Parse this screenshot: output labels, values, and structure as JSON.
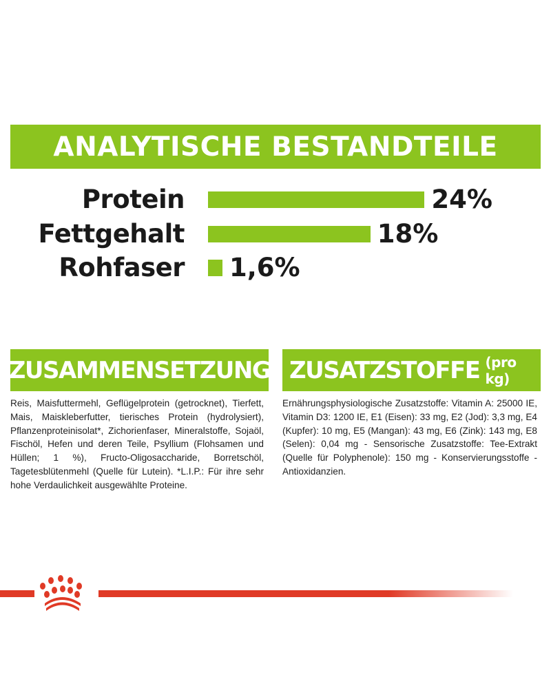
{
  "title": "ANALYTISCHE BESTANDTEILE",
  "analytics": [
    {
      "label": "Protein",
      "value": 24,
      "display": "24%"
    },
    {
      "label": "Fettgehalt",
      "value": 18,
      "display": "18%"
    },
    {
      "label": "Rohfaser",
      "value": 1.6,
      "display": "1,6%"
    }
  ],
  "composition": {
    "heading": "ZUSAMMENSETZUNG",
    "text": "Reis, Maisfuttermehl, Geflügelprotein (getrocknet), Tierfett, Mais, Maiskleberfutter, tierisches Protein (hydrolysiert), Pflanzenproteinisolat*, Zichorienfaser, Mineralstoffe, Sojaöl, Fischöl, Hefen und deren Teile, Psyllium (Flohsamen und Hüllen; 1 %), Fructo-Oligosaccharide, Borretschöl, Tagetesblütenmehl (Quelle für Lutein). *L.I.P.: Für ihre sehr hohe Verdaulichkeit ausgewählte Proteine."
  },
  "additives": {
    "heading": "ZUSATZSTOFFE",
    "heading_suffix": "(pro kg)",
    "text": "Ernährungsphysiologische Zusatzstoffe: Vitamin A: 25000 IE, Vitamin D3: 1200 IE, E1 (Eisen): 33 mg, E2 (Jod): 3,3 mg, E4 (Kupfer): 10 mg, E5 (Mangan): 43 mg, E6 (Zink): 143 mg, E8 (Selen): 0,04 mg - Sensorische Zusatzstoffe: Tee-Extrakt (Quelle für Polyphenole): 150 mg - Konservierungsstoffe - Antioxidanzien."
  },
  "colors": {
    "green": "#8cc41f",
    "red": "#e03a26"
  },
  "logo": "royal-canin-crown-logo"
}
